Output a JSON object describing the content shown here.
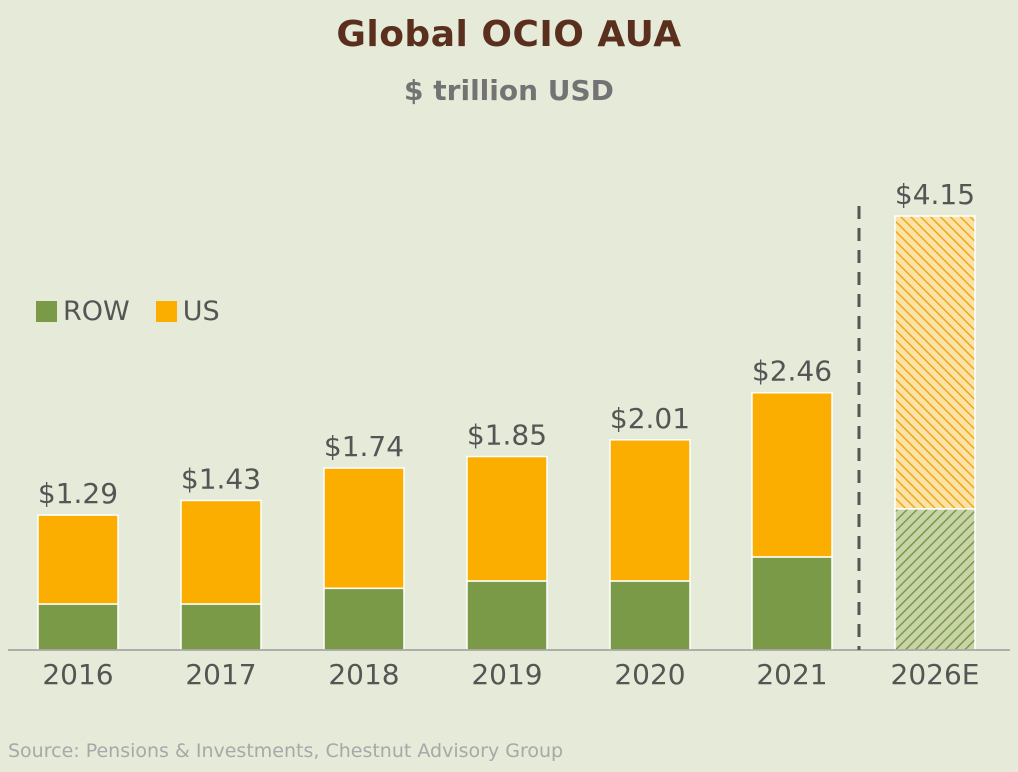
{
  "chart": {
    "title": "Global OCIO AUA",
    "subtitle": "$ trillion USD",
    "source": "Source:  Pensions & Investments, Chestnut Advisory Group",
    "legend": [
      {
        "label": "ROW",
        "color": "#7a9a48"
      },
      {
        "label": "US",
        "color": "#fcae00"
      }
    ]
  },
  "chart_data": {
    "type": "bar",
    "stacked": true,
    "categories": [
      "2016",
      "2017",
      "2018",
      "2019",
      "2020",
      "2021",
      "2026E"
    ],
    "series": [
      {
        "name": "ROW",
        "color": "#7a9a48",
        "values": [
          0.44,
          0.44,
          0.59,
          0.66,
          0.66,
          0.89,
          1.35
        ]
      },
      {
        "name": "US",
        "color": "#fcae00",
        "values": [
          0.85,
          0.99,
          1.15,
          1.19,
          1.35,
          1.57,
          2.8
        ]
      }
    ],
    "totals": [
      "$1.29",
      "$1.43",
      "$1.74",
      "$1.85",
      "$2.01",
      "$2.46",
      "$4.15"
    ],
    "projected_categories": [
      "2026E"
    ],
    "projected_style": "hatched",
    "ylim": [
      0,
      4.35
    ],
    "grid": false,
    "legend_position": "left"
  }
}
